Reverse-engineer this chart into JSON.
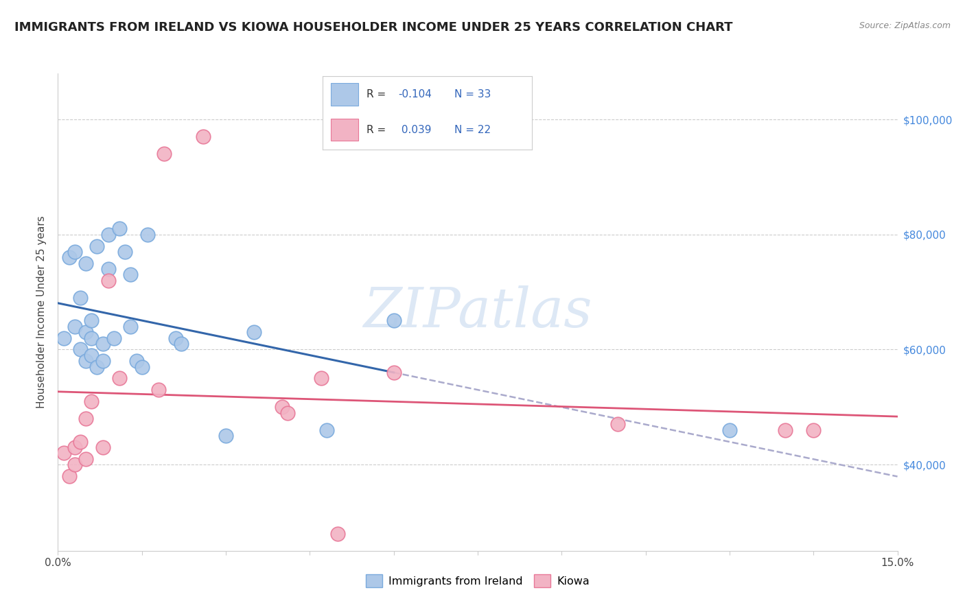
{
  "title": "IMMIGRANTS FROM IRELAND VS KIOWA HOUSEHOLDER INCOME UNDER 25 YEARS CORRELATION CHART",
  "source": "Source: ZipAtlas.com",
  "ylabel": "Householder Income Under 25 years",
  "xlim": [
    0.0,
    0.15
  ],
  "ylim": [
    25000,
    108000
  ],
  "xticks": [
    0.0,
    0.015,
    0.03,
    0.045,
    0.06,
    0.075,
    0.09,
    0.105,
    0.12,
    0.135,
    0.15
  ],
  "xticklabels": [
    "0.0%",
    "",
    "",
    "",
    "",
    "",
    "",
    "",
    "",
    "",
    "15.0%"
  ],
  "ytick_positions": [
    40000,
    60000,
    80000,
    100000
  ],
  "ytick_labels": [
    "$40,000",
    "$60,000",
    "$80,000",
    "$100,000"
  ],
  "legend_r_ireland": "-0.104",
  "legend_n_ireland": "33",
  "legend_r_kiowa": "0.039",
  "legend_n_kiowa": "22",
  "color_ireland": "#adc8e8",
  "color_kiowa": "#f2b3c4",
  "color_ireland_edge": "#7aaadd",
  "color_kiowa_edge": "#e87898",
  "color_ireland_line": "#3366aa",
  "color_kiowa_line": "#dd5577",
  "color_trend_dashed": "#aaaacc",
  "watermark_color": "#dde8f5",
  "ireland_x": [
    0.001,
    0.002,
    0.003,
    0.003,
    0.004,
    0.004,
    0.005,
    0.005,
    0.005,
    0.006,
    0.006,
    0.006,
    0.007,
    0.007,
    0.008,
    0.008,
    0.009,
    0.009,
    0.01,
    0.011,
    0.012,
    0.013,
    0.013,
    0.014,
    0.015,
    0.016,
    0.021,
    0.022,
    0.03,
    0.035,
    0.048,
    0.06,
    0.12
  ],
  "ireland_y": [
    62000,
    76000,
    64000,
    77000,
    60000,
    69000,
    58000,
    63000,
    75000,
    59000,
    62000,
    65000,
    57000,
    78000,
    58000,
    61000,
    74000,
    80000,
    62000,
    81000,
    77000,
    64000,
    73000,
    58000,
    57000,
    80000,
    62000,
    61000,
    45000,
    63000,
    46000,
    65000,
    46000
  ],
  "kiowa_x": [
    0.001,
    0.002,
    0.003,
    0.003,
    0.004,
    0.005,
    0.005,
    0.006,
    0.008,
    0.009,
    0.011,
    0.018,
    0.019,
    0.026,
    0.04,
    0.041,
    0.047,
    0.05,
    0.06,
    0.1,
    0.13,
    0.135
  ],
  "kiowa_y": [
    42000,
    38000,
    43000,
    40000,
    44000,
    41000,
    48000,
    51000,
    43000,
    72000,
    55000,
    53000,
    94000,
    97000,
    50000,
    49000,
    55000,
    28000,
    56000,
    47000,
    46000,
    46000
  ],
  "background_color": "#ffffff",
  "grid_color": "#cccccc",
  "title_fontsize": 13,
  "axis_fontsize": 11,
  "tick_fontsize": 11
}
